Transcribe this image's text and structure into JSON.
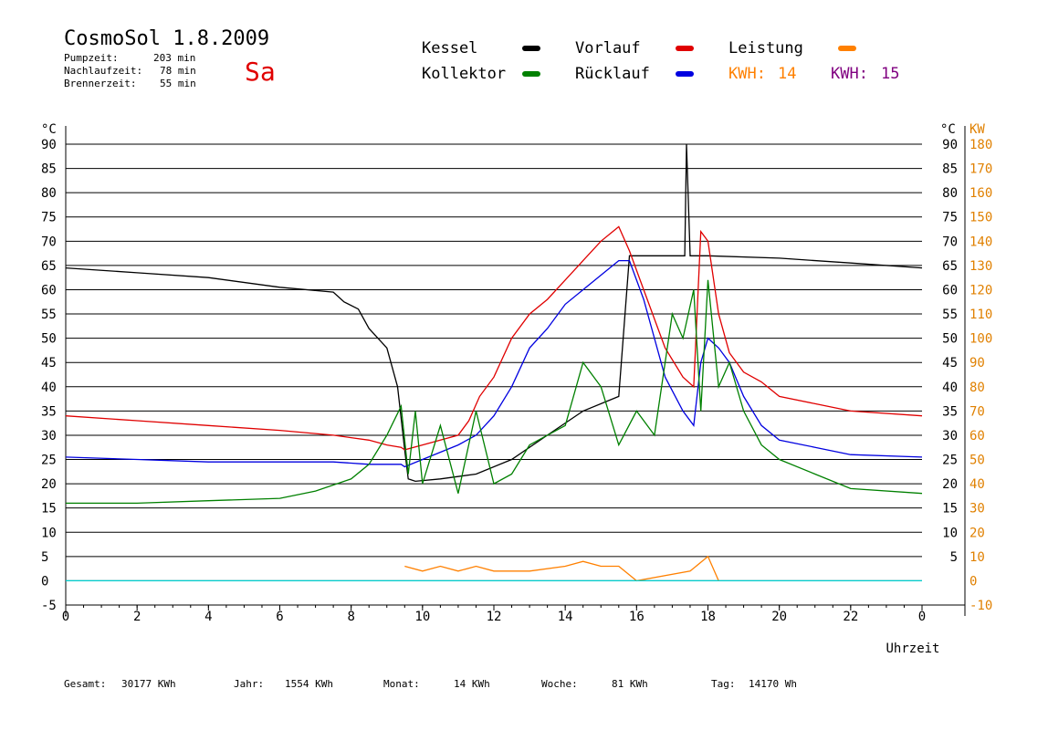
{
  "header": {
    "title": "CosmoSol 1.8.2009",
    "stats": [
      {
        "label": "Pumpzeit:",
        "value": "203 min"
      },
      {
        "label": "Nachlaufzeit:",
        "value": "78 min"
      },
      {
        "label": "Brennerzeit:",
        "value": "55 min"
      }
    ],
    "day": "Sa"
  },
  "legend": {
    "items": [
      {
        "label": "Kessel",
        "color": "#000000"
      },
      {
        "label": "Kollektor",
        "color": "#008000"
      },
      {
        "label": "Vorlauf",
        "color": "#e00000"
      },
      {
        "label": "Rücklauf",
        "color": "#0000e0"
      },
      {
        "label": "Leistung",
        "color": "#ff8000"
      }
    ],
    "kwh": [
      {
        "label": "KWH:",
        "value": "14",
        "color": "#ff8000"
      },
      {
        "label": "KWH:",
        "value": "15",
        "color": "#800080"
      }
    ]
  },
  "footer": {
    "gesamt": {
      "label": "Gesamt:",
      "value": "30177 KWh"
    },
    "jahr": {
      "label": "Jahr:",
      "value": "1554 KWh"
    },
    "monat": {
      "label": "Monat:",
      "value": "14 KWh"
    },
    "woche": {
      "label": "Woche:",
      "value": "81 KWh"
    },
    "tag": {
      "label": "Tag:",
      "value": "14170 Wh"
    }
  },
  "chart_data": {
    "type": "line",
    "xlabel": "Uhrzeit",
    "ylabel_left": "°C",
    "ylabel_right_unit1": "°C",
    "ylabel_right_unit2": "KW",
    "xlim": [
      0,
      24
    ],
    "ylim": [
      -5,
      90
    ],
    "x_ticks": [
      "0",
      "2",
      "4",
      "6",
      "8",
      "10",
      "12",
      "14",
      "16",
      "18",
      "20",
      "22",
      "0"
    ],
    "y_ticks_left": [
      "-5",
      "0",
      "5",
      "10",
      "15",
      "20",
      "25",
      "30",
      "35",
      "40",
      "45",
      "50",
      "55",
      "60",
      "65",
      "70",
      "75",
      "80",
      "85",
      "90"
    ],
    "y_ticks_right_c": [
      "5",
      "10",
      "15",
      "20",
      "25",
      "30",
      "35",
      "40",
      "45",
      "50",
      "55",
      "60",
      "65",
      "70",
      "75",
      "80",
      "85",
      "90"
    ],
    "y_ticks_right_kw": [
      "-10",
      "0",
      "10",
      "20",
      "30",
      "40",
      "50",
      "60",
      "70",
      "80",
      "90",
      "100",
      "110",
      "120",
      "130",
      "140",
      "150",
      "160",
      "170",
      "180"
    ],
    "series": [
      {
        "name": "Kessel",
        "color": "#000000",
        "x": [
          0,
          2,
          4,
          6,
          7.5,
          7.8,
          8.2,
          8.5,
          9.0,
          9.3,
          9.5,
          9.6,
          9.8,
          10.5,
          11.5,
          12.5,
          13.5,
          14.5,
          15.5,
          15.8,
          17.2,
          17.35,
          17.4,
          17.5,
          18,
          20,
          22,
          24
        ],
        "y": [
          64.5,
          63.5,
          62.5,
          60.5,
          59.5,
          57.5,
          56,
          52,
          48,
          40,
          27,
          21,
          20.5,
          21,
          22,
          25,
          30,
          35,
          38,
          67,
          67,
          67,
          90,
          67,
          67,
          66.5,
          65.5,
          64.5
        ]
      },
      {
        "name": "Vorlauf",
        "color": "#e00000",
        "x": [
          0,
          2,
          4,
          6,
          7.5,
          8.5,
          9.0,
          9.4,
          9.5,
          10.0,
          11.0,
          11.3,
          11.6,
          12.0,
          12.5,
          13.0,
          13.5,
          14.0,
          14.5,
          15.0,
          15.5,
          15.8,
          16.2,
          16.8,
          17.3,
          17.6,
          17.8,
          18.0,
          18.3,
          18.6,
          19.0,
          19.5,
          20.0,
          21.0,
          22.0,
          24.0
        ],
        "y": [
          34,
          33,
          32,
          31,
          30,
          29,
          28,
          27.5,
          27,
          28,
          30,
          33,
          38,
          42,
          50,
          55,
          58,
          62,
          66,
          70,
          73,
          68,
          60,
          48,
          42,
          40,
          72,
          70,
          55,
          47,
          43,
          41,
          38,
          36.5,
          35,
          34
        ]
      },
      {
        "name": "Rücklauf",
        "color": "#0000e0",
        "x": [
          0,
          2,
          4,
          6,
          7.5,
          8.5,
          9.0,
          9.4,
          9.5,
          10.0,
          11.0,
          11.5,
          12.0,
          12.5,
          13.0,
          13.5,
          14.0,
          14.5,
          15.0,
          15.5,
          15.8,
          16.2,
          16.8,
          17.3,
          17.6,
          17.8,
          18.0,
          18.3,
          18.6,
          19.0,
          19.5,
          20.0,
          21.0,
          22.0,
          24.0
        ],
        "y": [
          25.5,
          25,
          24.5,
          24.5,
          24.5,
          24,
          24,
          24,
          23.5,
          25,
          28,
          30,
          34,
          40,
          48,
          52,
          57,
          60,
          63,
          66,
          66,
          58,
          42,
          35,
          32,
          45,
          50,
          48,
          45,
          38,
          32,
          29,
          27.5,
          26,
          25.5
        ]
      },
      {
        "name": "Kollektor",
        "color": "#008000",
        "x": [
          0,
          2,
          4,
          6,
          7,
          8,
          8.5,
          9.0,
          9.4,
          9.6,
          9.8,
          10.0,
          10.5,
          11.0,
          11.5,
          12.0,
          12.5,
          13.0,
          13.5,
          14.0,
          14.5,
          15.0,
          15.5,
          16.0,
          16.5,
          17.0,
          17.3,
          17.6,
          17.8,
          18.0,
          18.3,
          18.6,
          19.0,
          19.5,
          20.0,
          21.0,
          22.0,
          24.0
        ],
        "y": [
          16,
          16,
          16.5,
          17,
          18.5,
          21,
          24,
          30,
          36,
          22,
          35,
          20,
          32,
          18,
          35,
          20,
          22,
          28,
          30,
          32,
          45,
          40,
          28,
          35,
          30,
          55,
          50,
          60,
          35,
          62,
          40,
          45,
          35,
          28,
          25,
          22,
          19,
          18
        ]
      },
      {
        "name": "Leistung",
        "color": "#ff8000",
        "x": [
          9.5,
          10,
          10.5,
          11,
          11.5,
          12,
          13,
          14,
          14.5,
          15,
          15.5,
          16,
          17.5,
          18,
          18.3
        ],
        "y": [
          3,
          2,
          3,
          2,
          3,
          2,
          2,
          3,
          4,
          3,
          3,
          0,
          2,
          5,
          0
        ]
      },
      {
        "name": "Pumpe",
        "color": "#00d0d0",
        "x": [
          0,
          24
        ],
        "y": [
          0,
          0
        ]
      }
    ]
  }
}
